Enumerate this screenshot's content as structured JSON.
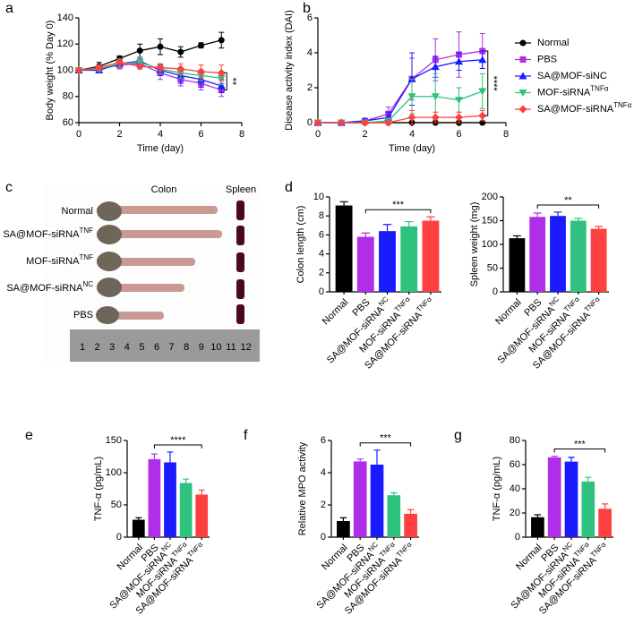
{
  "chart_data": [
    {
      "type": "line",
      "panel": "a",
      "xlabel": "Time (day)",
      "ylabel": "Body weight (% Day 0)",
      "x": [
        0,
        1,
        2,
        3,
        4,
        5,
        6,
        7
      ],
      "xlim": [
        0,
        8
      ],
      "xticks": [
        0,
        2,
        4,
        6,
        8
      ],
      "ylim": [
        60,
        140
      ],
      "yticks": [
        60,
        80,
        100,
        120,
        140
      ],
      "annotation": "**",
      "legend": false,
      "series": [
        {
          "name": "Normal",
          "color": "#000000",
          "marker": "circle",
          "values": [
            100,
            103,
            109,
            115,
            118,
            114,
            119,
            123
          ],
          "errors": [
            0,
            3,
            2,
            5,
            6,
            4,
            2,
            6
          ]
        },
        {
          "name": "PBS",
          "color": "#b02ee8",
          "marker": "square",
          "values": [
            100,
            101,
            104,
            105,
            98,
            93,
            90,
            85
          ],
          "errors": [
            0,
            3,
            3,
            4,
            5,
            5,
            5,
            5
          ]
        },
        {
          "name": "SA@MOF-siNC",
          "color": "#1a1aff",
          "marker": "triangle",
          "values": [
            100,
            100,
            105,
            107,
            100,
            96,
            93,
            88
          ],
          "errors": [
            0,
            2,
            3,
            3,
            4,
            6,
            6,
            5
          ]
        },
        {
          "name": "MOF-siRNA",
          "name_sup": "TNFα",
          "color": "#2ec27e",
          "marker": "triangle-down",
          "values": [
            100,
            101,
            105,
            106,
            101,
            98,
            96,
            94
          ],
          "errors": [
            0,
            2,
            3,
            4,
            4,
            4,
            4,
            5
          ]
        },
        {
          "name": "SA@MOF-siRNA",
          "name_sup": "TNFα",
          "color": "#ff4040",
          "marker": "diamond",
          "values": [
            100,
            102,
            106,
            103,
            102,
            101,
            99,
            98
          ],
          "errors": [
            0,
            2,
            3,
            2,
            3,
            4,
            5,
            6
          ]
        }
      ]
    },
    {
      "type": "line",
      "panel": "b",
      "xlabel": "Time (day)",
      "ylabel": "Disease activity index (DAI)",
      "x": [
        0,
        1,
        2,
        3,
        4,
        5,
        6,
        7
      ],
      "xlim": [
        0,
        8
      ],
      "xticks": [
        0,
        2,
        4,
        6,
        8
      ],
      "ylim": [
        0,
        6
      ],
      "yticks": [
        0,
        2,
        4,
        6
      ],
      "annotation": "****",
      "legend": "outside-right",
      "series": [
        {
          "name": "Normal",
          "color": "#000000",
          "marker": "circle",
          "values": [
            0,
            0,
            0,
            0,
            0,
            0,
            0,
            0
          ],
          "errors": [
            0,
            0,
            0,
            0,
            0,
            0,
            0,
            0
          ]
        },
        {
          "name": "PBS",
          "color": "#b02ee8",
          "marker": "square",
          "values": [
            0,
            0,
            0.1,
            0.5,
            2.5,
            3.6,
            3.9,
            4.1
          ],
          "errors": [
            0,
            0,
            0.1,
            0.4,
            1.2,
            1.2,
            1.3,
            1.0
          ]
        },
        {
          "name": "SA@MOF-siNC",
          "color": "#1a1aff",
          "marker": "triangle",
          "values": [
            0,
            0,
            0.1,
            0.3,
            2.5,
            3.2,
            3.5,
            3.6
          ],
          "errors": [
            0,
            0,
            0.1,
            0.3,
            1.5,
            0.6,
            0.5,
            0.5
          ]
        },
        {
          "name": "MOF-siRNA",
          "name_sup": "TNFα",
          "color": "#2ec27e",
          "marker": "triangle-down",
          "values": [
            0,
            0,
            0,
            0.1,
            1.5,
            1.5,
            1.3,
            1.8
          ],
          "errors": [
            0,
            0,
            0,
            0.1,
            1.0,
            1.3,
            0.7,
            1.0
          ]
        },
        {
          "name": "SA@MOF-siRNA",
          "name_sup": "TNFα",
          "color": "#ff4040",
          "marker": "diamond",
          "values": [
            0,
            0,
            0,
            0,
            0.3,
            0.3,
            0.3,
            0.4
          ],
          "errors": [
            0,
            0,
            0,
            0,
            0.4,
            0.3,
            0.3,
            0.3
          ]
        }
      ]
    },
    {
      "type": "bar",
      "panel": "d",
      "ylabel": "Colon length (cm)",
      "categories": [
        "Normal",
        "PBS",
        "SA@MOF-siRNA",
        "MOF-siRNA",
        "SA@MOF-siRNA"
      ],
      "category_sups": [
        null,
        null,
        "NC",
        "TNFα",
        "TNFα"
      ],
      "colors": [
        "#000000",
        "#b02ee8",
        "#1a1aff",
        "#2ec27e",
        "#ff4040"
      ],
      "values": [
        9.1,
        5.8,
        6.4,
        6.9,
        7.5
      ],
      "errors": [
        0.4,
        0.4,
        0.7,
        0.5,
        0.4
      ],
      "ylim": [
        0,
        10
      ],
      "yticks": [
        0,
        2,
        4,
        6,
        8,
        10
      ],
      "annotation": "***"
    },
    {
      "type": "bar",
      "ylabel": "Spleen weight (mg)",
      "categories": [
        "Normal",
        "PBS",
        "SA@MOF-siRNA",
        "MOF-siRNA",
        "SA@MOF-siRNA"
      ],
      "category_sups": [
        null,
        null,
        "NC",
        "TNFα",
        "TNFα"
      ],
      "colors": [
        "#000000",
        "#b02ee8",
        "#1a1aff",
        "#2ec27e",
        "#ff4040"
      ],
      "values": [
        113,
        158,
        160,
        150,
        133
      ],
      "errors": [
        5,
        8,
        8,
        5,
        5
      ],
      "ylim": [
        0,
        200
      ],
      "yticks": [
        0,
        50,
        100,
        150,
        200
      ],
      "annotation": "**"
    },
    {
      "type": "bar",
      "panel": "e",
      "ylabel": "TNF-α (pg/mL)",
      "categories": [
        "Normal",
        "PBS",
        "SA@MOF-siRNA",
        "MOF-siRNA",
        "SA@MOF-siRNA"
      ],
      "category_sups": [
        null,
        null,
        "NC",
        "TNFα",
        "TNFα"
      ],
      "colors": [
        "#000000",
        "#b02ee8",
        "#1a1aff",
        "#2ec27e",
        "#ff4040"
      ],
      "values": [
        27,
        121,
        116,
        84,
        66
      ],
      "errors": [
        3,
        8,
        16,
        6,
        7
      ],
      "ylim": [
        0,
        150
      ],
      "yticks": [
        0,
        50,
        100,
        150
      ],
      "annotation": "****"
    },
    {
      "type": "bar",
      "panel": "f",
      "ylabel": "Relative MPO activity",
      "categories": [
        "Normal",
        "PBS",
        "SA@MOF-siRNA",
        "MOF-siRNA",
        "SA@MOF-siRNA"
      ],
      "category_sups": [
        null,
        null,
        "NC",
        "TNFα",
        "TNFα"
      ],
      "colors": [
        "#000000",
        "#b02ee8",
        "#1a1aff",
        "#2ec27e",
        "#ff4040"
      ],
      "values": [
        1.0,
        4.7,
        4.5,
        2.6,
        1.45
      ],
      "errors": [
        0.2,
        0.15,
        0.9,
        0.15,
        0.25
      ],
      "ylim": [
        0,
        6
      ],
      "yticks": [
        0,
        2,
        4,
        6
      ],
      "annotation": "***"
    },
    {
      "type": "bar",
      "panel": "g",
      "ylabel": "TNF-α (pg/mL)",
      "categories": [
        "Normal",
        "PBS",
        "SA@MOF-siRNA",
        "MOF-siRNA",
        "SA@MOF-siRNA"
      ],
      "category_sups": [
        null,
        null,
        "NC",
        "TNFα",
        "TNFα"
      ],
      "colors": [
        "#000000",
        "#b02ee8",
        "#1a1aff",
        "#2ec27e",
        "#ff4040"
      ],
      "values": [
        16.5,
        66,
        62.5,
        46,
        23.5
      ],
      "errors": [
        2,
        1,
        3.5,
        3.5,
        4
      ],
      "ylim": [
        0,
        80
      ],
      "yticks": [
        0,
        20,
        40,
        60,
        80
      ],
      "annotation": "***"
    }
  ],
  "photo_panel": {
    "panel": "c",
    "column_labels": [
      "Colon",
      "Spleen"
    ],
    "row_labels": [
      {
        "text": "Normal"
      },
      {
        "text": "SA@MOF-siRNA",
        "sup": "TNF"
      },
      {
        "text": "MOF-siRNA",
        "sup": "TNF"
      },
      {
        "text": "SA@MOF-siRNA",
        "sup": "NC"
      },
      {
        "text": "PBS"
      }
    ],
    "ruler_labels": [
      "1",
      "2",
      "3",
      "4",
      "5",
      "6",
      "7",
      "8",
      "9",
      "10",
      "11",
      "12"
    ]
  }
}
